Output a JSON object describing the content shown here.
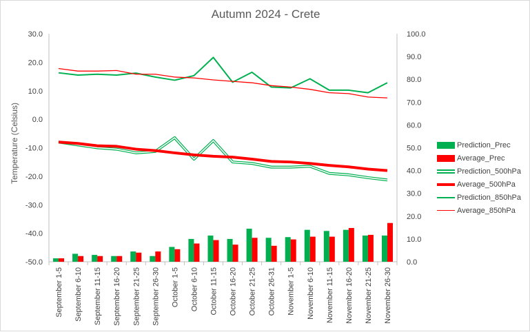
{
  "chart_data": {
    "type": "bar+line",
    "title": "Autumn 2024 - Crete",
    "ylabel": "Temperature (Celsius)",
    "y2label": "",
    "ylim": [
      -50,
      30
    ],
    "y2lim": [
      0,
      100
    ],
    "yticks": [
      "30.0",
      "20.0",
      "10.0",
      "0.0",
      "-10.0",
      "-20.0",
      "-30.0",
      "-40.0",
      "-50.0"
    ],
    "y2ticks": [
      "100.0",
      "90.0",
      "80.0",
      "70.0",
      "60.0",
      "50.0",
      "40.0",
      "30.0",
      "20.0",
      "10.0",
      "0.0"
    ],
    "categories": [
      "September 1-5",
      "September 6-10",
      "September 11-15",
      "September 16-20",
      "September 21-25",
      "September 26-30",
      "October 1-5",
      "October 6-10",
      "October 11-15",
      "October 16-20",
      "October 21-25",
      "October 26-31",
      "November 1-5",
      "November 6-10",
      "November 11-15",
      "November 16-20",
      "November 21-25",
      "November 26-30"
    ],
    "legend_position": "right",
    "series": [
      {
        "name": "Prediction_Prec",
        "type": "bar",
        "axis": "y2",
        "color": "#00b050",
        "values": [
          1.5,
          3.5,
          3.0,
          2.5,
          4.5,
          2.5,
          6.5,
          10.0,
          11.5,
          10.0,
          14.5,
          10.5,
          10.8,
          14.0,
          13.5,
          14.0,
          11.5,
          11.5
        ]
      },
      {
        "name": "Average_Prec",
        "type": "bar",
        "axis": "y2",
        "color": "#ff0000",
        "values": [
          1.5,
          2.5,
          2.5,
          2.5,
          4.0,
          4.5,
          5.5,
          8.0,
          9.5,
          7.5,
          10.5,
          7.0,
          9.8,
          11.0,
          11.0,
          14.8,
          11.8,
          17.0
        ]
      },
      {
        "name": "Prediction_500hPa",
        "type": "double-line",
        "axis": "y",
        "color": "#00b050",
        "values": [
          -8.0,
          -9.0,
          -10.0,
          -10.5,
          -11.8,
          -11.3,
          -6.5,
          -14.0,
          -7.5,
          -15.0,
          -15.5,
          -16.8,
          -16.8,
          -16.5,
          -19.0,
          -19.5,
          -20.5,
          -21.3
        ]
      },
      {
        "name": "Average_500hPa",
        "type": "line",
        "axis": "y",
        "color": "#ff0000",
        "width": 4,
        "values": [
          -8.0,
          -8.5,
          -9.3,
          -9.5,
          -10.5,
          -11.0,
          -11.8,
          -12.5,
          -13.0,
          -13.3,
          -14.0,
          -14.8,
          -15.0,
          -15.5,
          -16.2,
          -16.7,
          -17.5,
          -18.0
        ]
      },
      {
        "name": "Prediction_850hPa",
        "type": "line",
        "axis": "y",
        "color": "#00b050",
        "width": 2,
        "values": [
          16.3,
          15.5,
          15.8,
          15.5,
          16.2,
          14.8,
          13.7,
          15.3,
          21.7,
          13.0,
          16.5,
          11.3,
          11.0,
          14.2,
          10.2,
          10.2,
          9.3,
          12.8
        ]
      },
      {
        "name": "Average_850hPa",
        "type": "line",
        "axis": "y",
        "color": "#ff0000",
        "width": 1.3,
        "values": [
          17.8,
          16.9,
          16.9,
          17.1,
          15.8,
          15.8,
          14.8,
          14.5,
          13.8,
          13.3,
          12.8,
          11.8,
          11.3,
          10.5,
          9.3,
          9.0,
          7.8,
          7.5
        ]
      }
    ]
  }
}
